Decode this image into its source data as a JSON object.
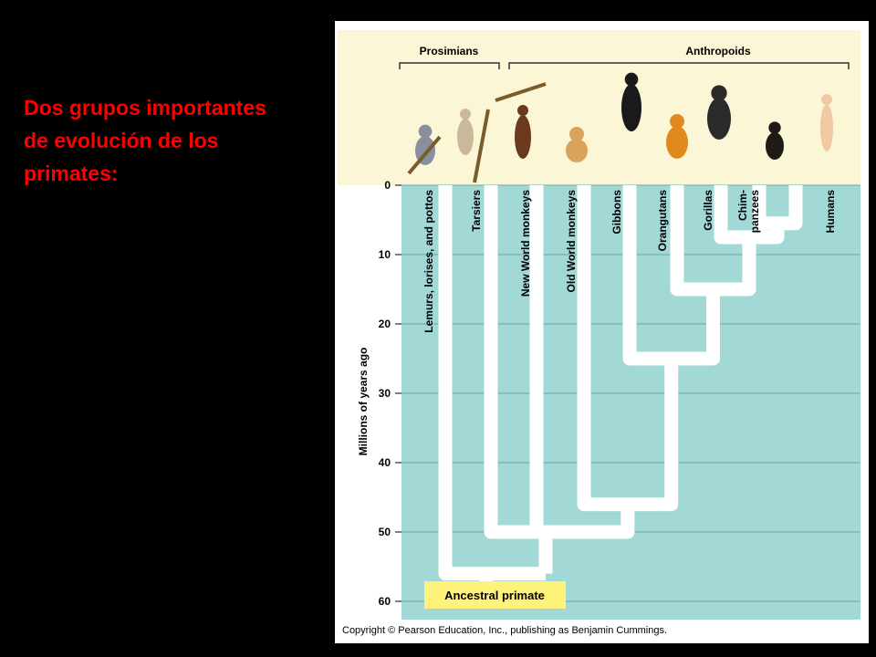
{
  "slide": {
    "title_lines": [
      "Dos grupos importantes",
      "de evolución de los",
      "primates:"
    ]
  },
  "colors": {
    "background": "#000000",
    "title": "#ff0000",
    "top_panel": "#fbf7d6",
    "chart_bg": "#a2d8d6",
    "branch": "#ffffff",
    "ancestor_box": "#fff27a"
  },
  "figure": {
    "groups": {
      "prosimians": "Prosimians",
      "anthropoids": "Anthropoids"
    },
    "y_axis_label": "Millions of years ago",
    "y_ticks": [
      "0",
      "10",
      "20",
      "30",
      "40",
      "50",
      "60"
    ],
    "y_tick_values": [
      0,
      10,
      20,
      30,
      40,
      50,
      60
    ],
    "taxa": [
      {
        "lines": [
          "Lemurs, lorises, and pottos"
        ],
        "icon": "lemur-icon"
      },
      {
        "lines": [
          "Tarsiers"
        ],
        "icon": "tarsier-icon"
      },
      {
        "lines": [
          "New World monkeys"
        ],
        "icon": "spider-monkey-icon"
      },
      {
        "lines": [
          "Old World monkeys"
        ],
        "icon": "macaque-icon"
      },
      {
        "lines": [
          "Gibbons"
        ],
        "icon": "gibbon-icon"
      },
      {
        "lines": [
          "Orangutans"
        ],
        "icon": "orangutan-icon"
      },
      {
        "lines": [
          "Gorillas"
        ],
        "icon": "gorilla-icon"
      },
      {
        "lines": [
          "Chim-",
          "panzees"
        ],
        "icon": "chimpanzee-icon"
      },
      {
        "lines": [
          "Humans"
        ],
        "icon": "human-icon"
      }
    ],
    "divergence_mya": [
      56,
      50,
      46,
      25,
      15,
      7.5,
      5.5,
      3.5
    ],
    "ancestor_label": "Ancestral primate",
    "copyright": "Copyright © Pearson Education, Inc., publishing as Benjamin Cummings."
  }
}
